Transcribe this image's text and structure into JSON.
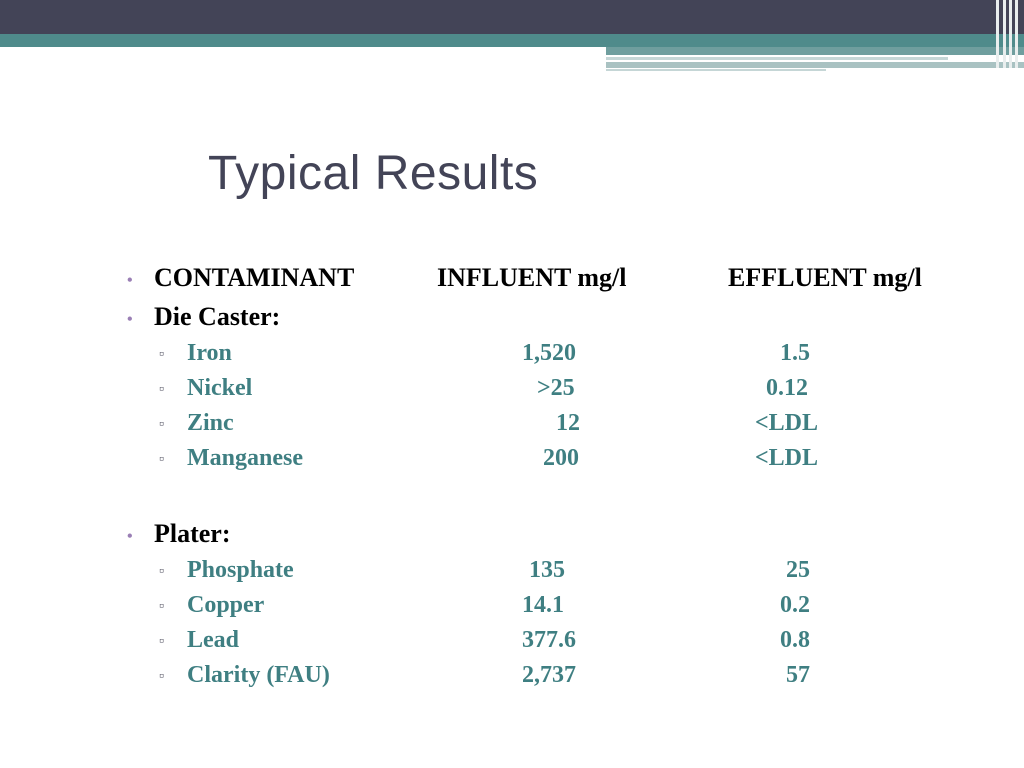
{
  "slide": {
    "title": "Typical Results",
    "header": {
      "contaminant": "CONTAMINANT",
      "influent": "INFLUENT mg/l",
      "effluent": "EFFLUENT mg/l"
    },
    "groups": [
      {
        "label": "Die Caster:",
        "rows": [
          {
            "name": "Iron",
            "influent": "1,520",
            "effluent": "1.5"
          },
          {
            "name": "Nickel",
            "influent": ">25",
            "effluent": "0.12"
          },
          {
            "name": "Zinc",
            "influent": "12",
            "effluent": "<LDL"
          },
          {
            "name": "Manganese",
            "influent": "200",
            "effluent": "<LDL"
          }
        ]
      },
      {
        "label": "Plater:",
        "rows": [
          {
            "name": "Phosphate",
            "influent": "135",
            "effluent": "25"
          },
          {
            "name": "Copper",
            "influent": "14.1",
            "effluent": "0.2"
          },
          {
            "name": "Lead",
            "influent": "377.6",
            "effluent": "0.8"
          },
          {
            "name": "Clarity (FAU)",
            "influent": "2,737",
            "effluent": "57"
          }
        ]
      }
    ]
  }
}
